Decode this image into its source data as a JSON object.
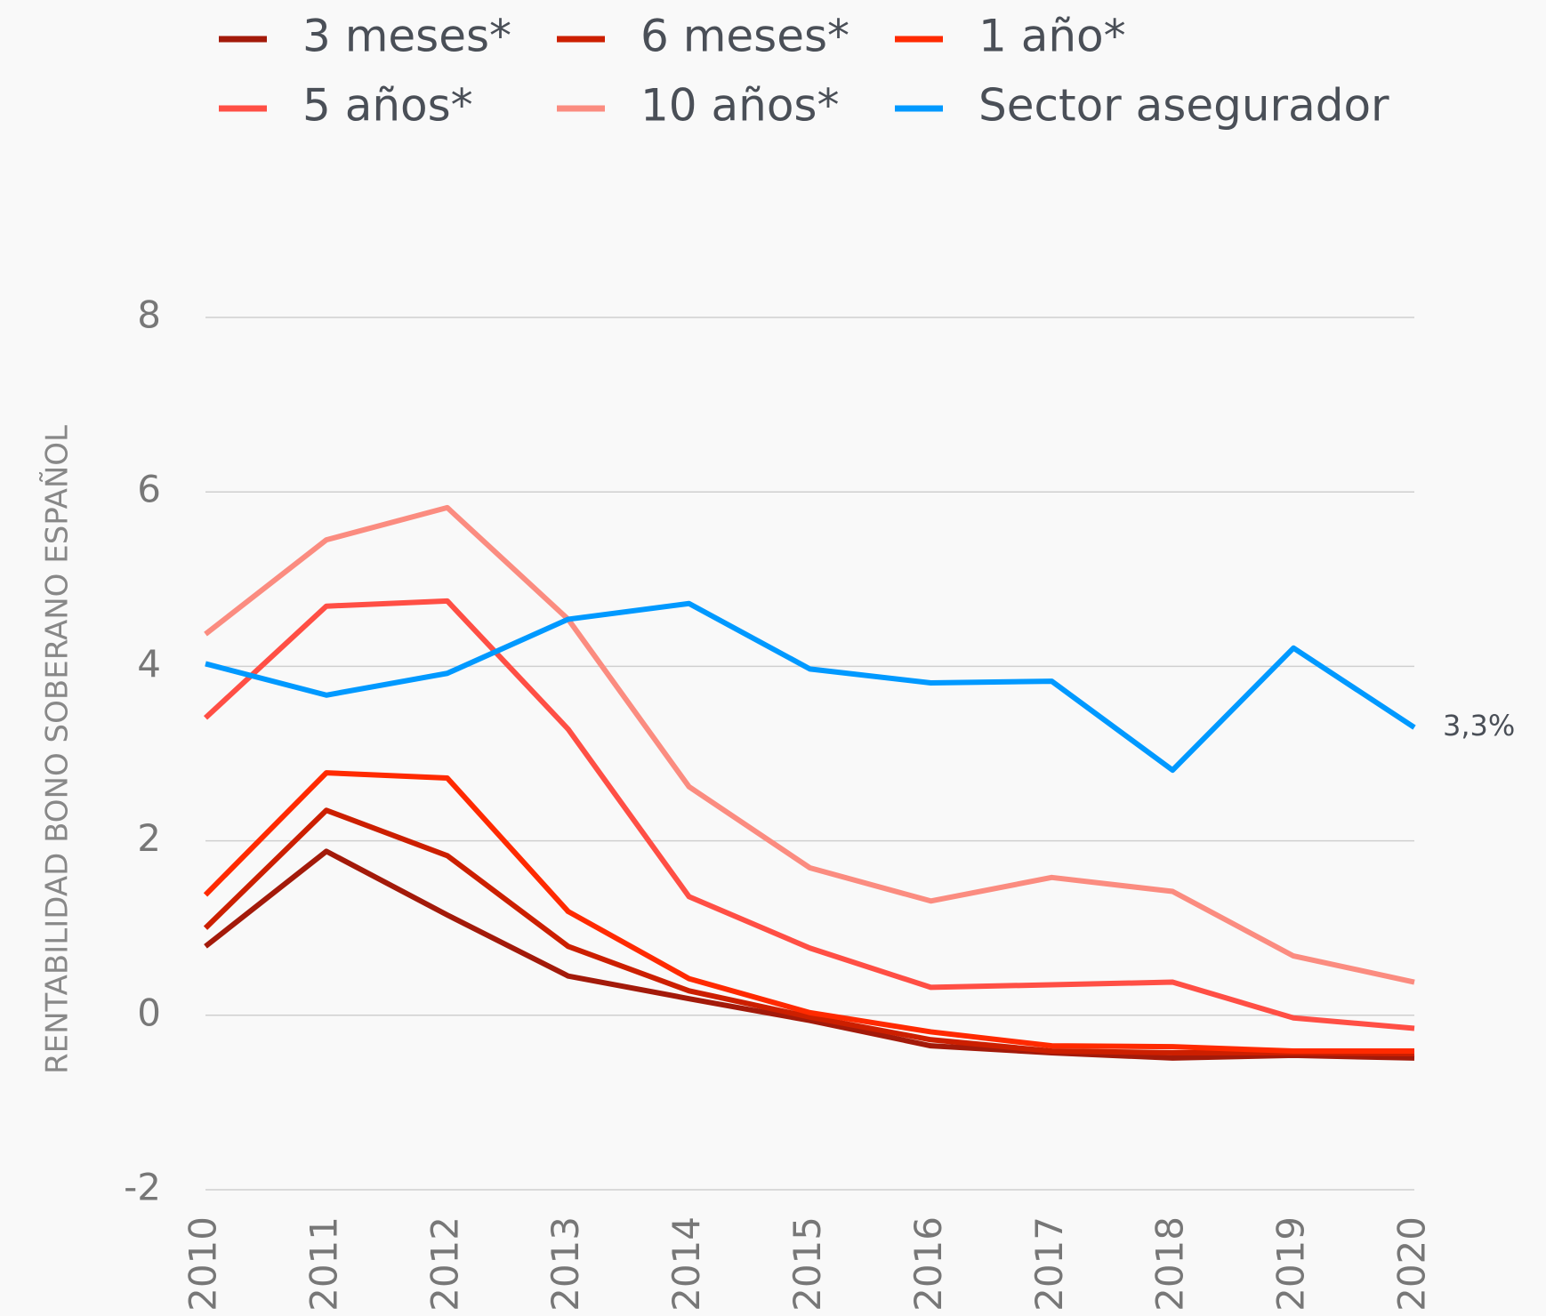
{
  "chart_data": {
    "type": "line",
    "y_label": "RENTABILIDAD BONO SOBERANO ESPAÑOL",
    "x": [
      2010,
      2011,
      2012,
      2013,
      2014,
      2015,
      2016,
      2017,
      2018,
      2019,
      2020
    ],
    "xlim": [
      2010,
      2020
    ],
    "xticks": [
      2010,
      2011,
      2012,
      2013,
      2014,
      2015,
      2016,
      2017,
      2018,
      2019,
      2020
    ],
    "ylim": [
      -2,
      8
    ],
    "yticks": [
      -2,
      0,
      2,
      4,
      6,
      8
    ],
    "grid": true,
    "series": [
      {
        "name": "3 meses*",
        "color": "#a31a0a",
        "values": [
          0.79,
          1.88,
          1.15,
          0.45,
          0.19,
          -0.06,
          -0.35,
          -0.43,
          -0.49,
          -0.46,
          -0.49
        ]
      },
      {
        "name": "6 meses*",
        "color": "#cc1f00",
        "values": [
          1.0,
          2.35,
          1.83,
          0.79,
          0.28,
          -0.02,
          -0.28,
          -0.41,
          -0.43,
          -0.43,
          -0.44
        ]
      },
      {
        "name": "1 año*",
        "color": "#ff2a00",
        "values": [
          1.38,
          2.78,
          2.72,
          1.19,
          0.42,
          0.03,
          -0.19,
          -0.35,
          -0.36,
          -0.41,
          -0.41
        ]
      },
      {
        "name": "5 años*",
        "color": "#ff4f45",
        "values": [
          3.41,
          4.69,
          4.75,
          3.28,
          1.36,
          0.77,
          0.32,
          0.35,
          0.38,
          -0.03,
          -0.15
        ]
      },
      {
        "name": "10 años*",
        "color": "#fb8c80",
        "values": [
          4.37,
          5.45,
          5.82,
          4.54,
          2.62,
          1.69,
          1.31,
          1.58,
          1.42,
          0.68,
          0.38
        ]
      },
      {
        "name": "Sector asegurador",
        "color": "#0099ff",
        "values": [
          4.03,
          3.67,
          3.92,
          4.54,
          4.72,
          3.97,
          3.81,
          3.83,
          2.81,
          4.21,
          3.3
        ],
        "value_labels": [
          null,
          null,
          null,
          null,
          null,
          null,
          null,
          null,
          null,
          null,
          "3,3%"
        ]
      }
    ]
  }
}
